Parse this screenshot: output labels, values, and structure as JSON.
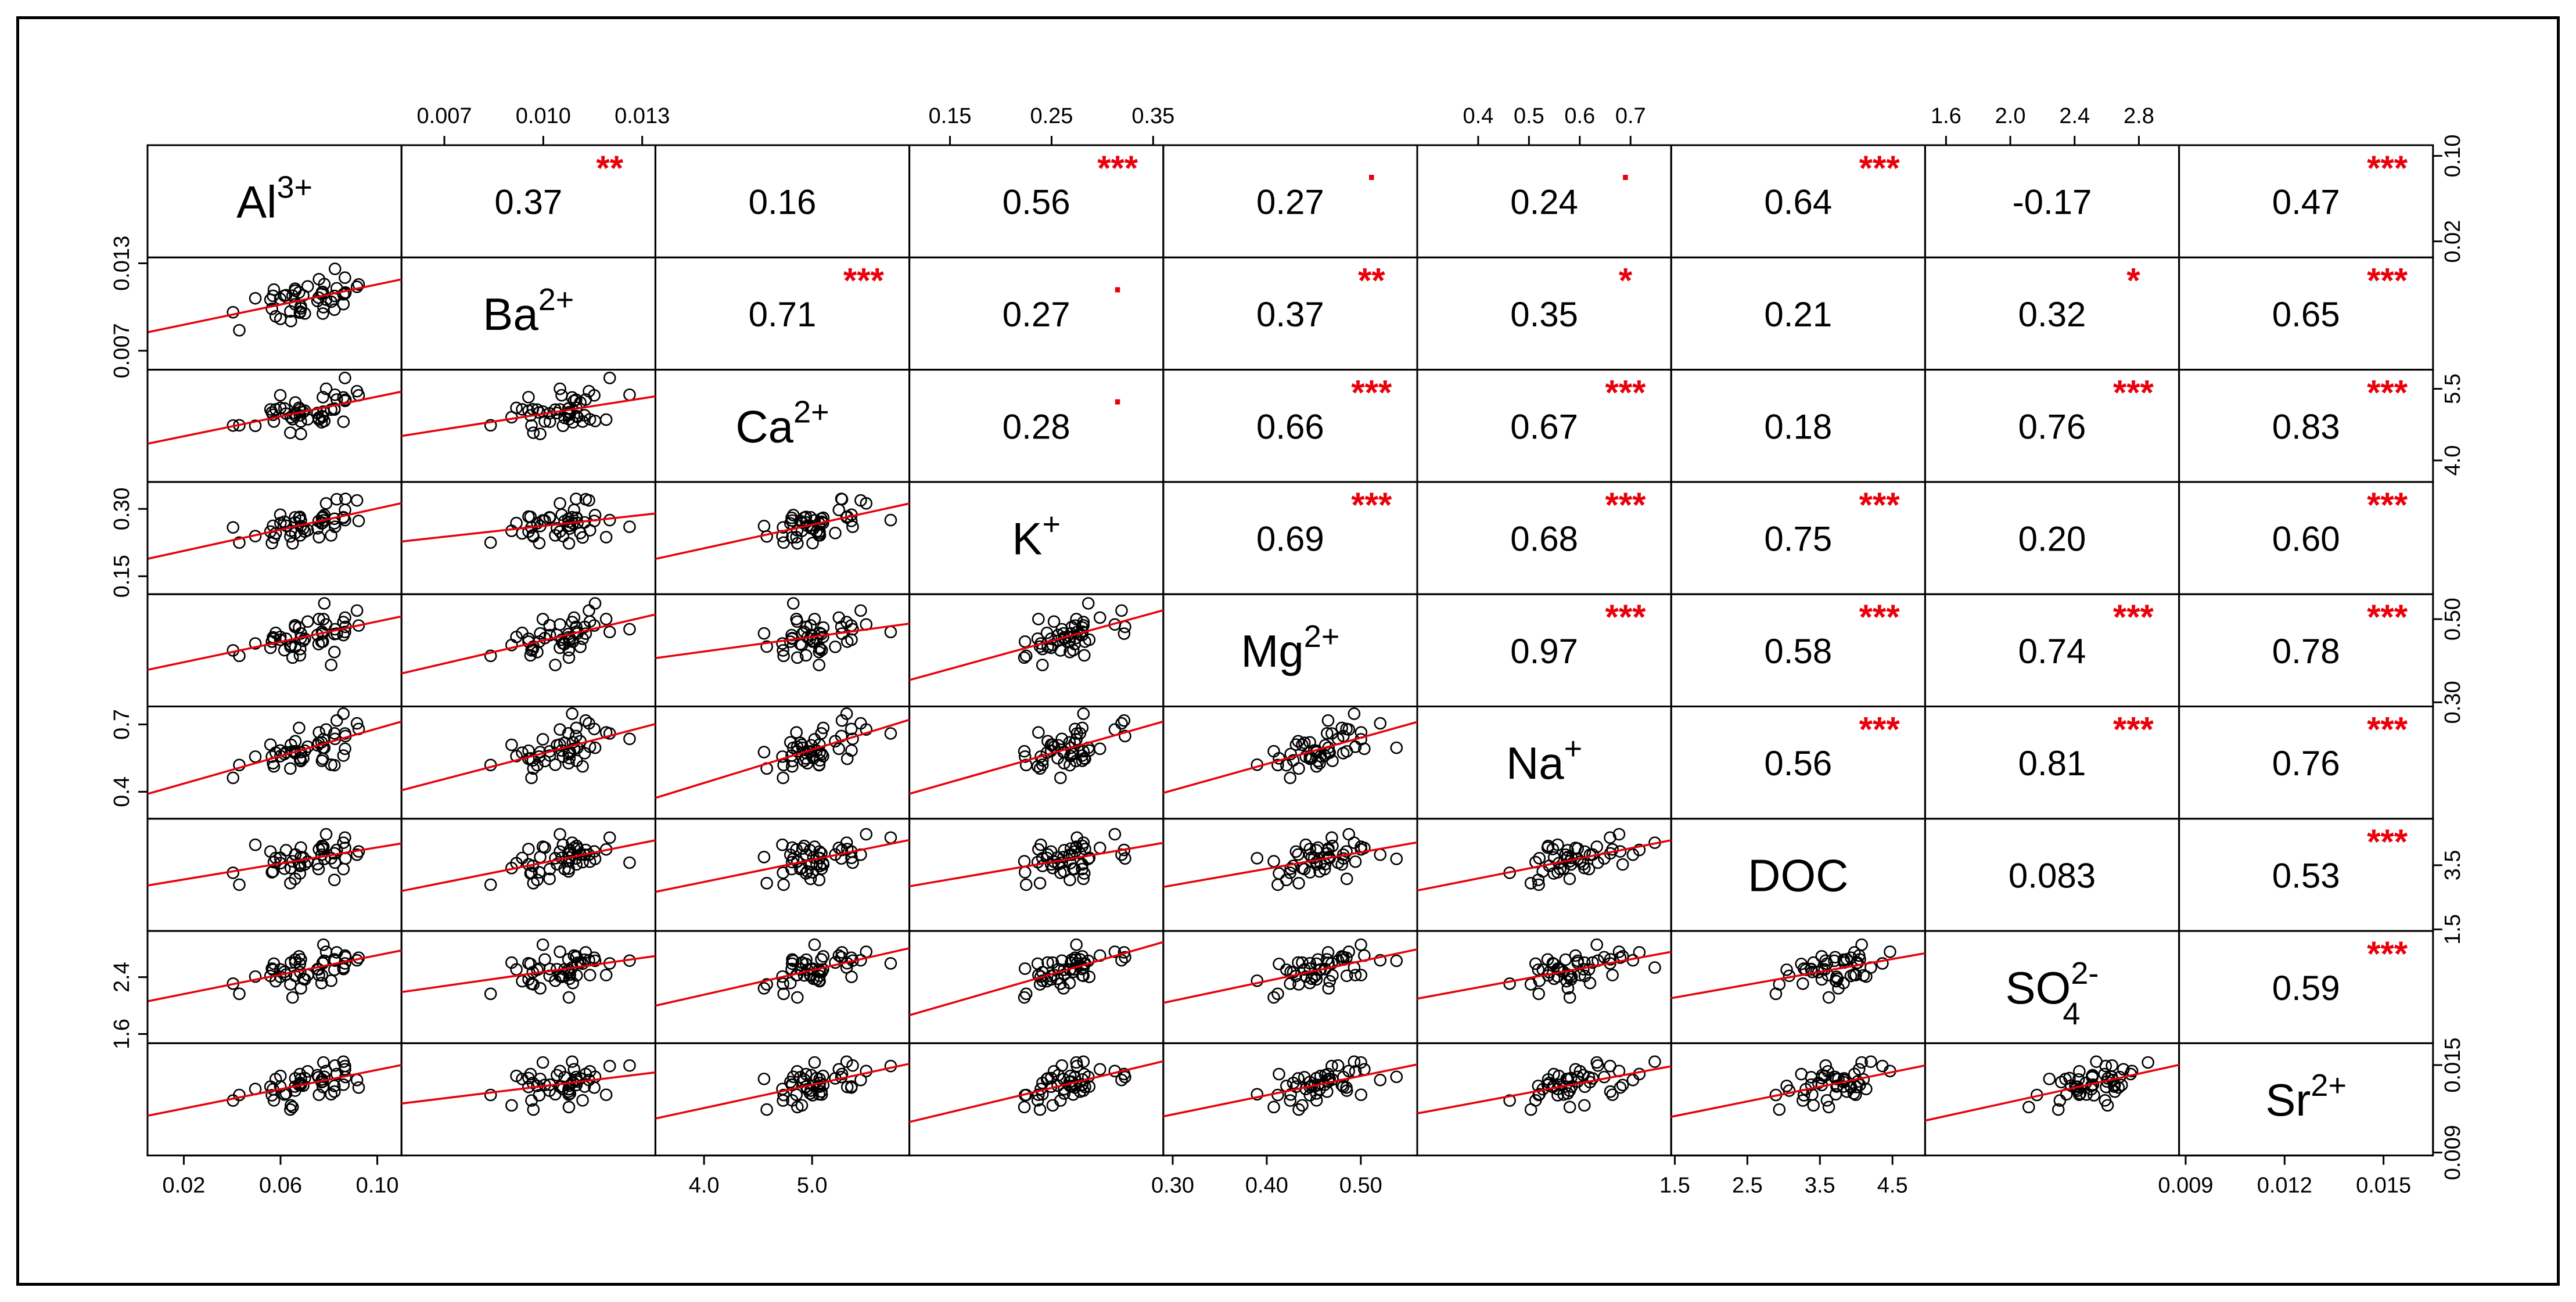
{
  "chart_data": {
    "type": "scatter",
    "title": "",
    "variables": [
      {
        "key": "Al",
        "label": "Al",
        "sup": "3+",
        "sub": "",
        "range": [
          0.005,
          0.11
        ],
        "ticks": [
          0.02,
          0.06,
          0.1
        ],
        "tick_labels": [
          "0.02",
          "0.06",
          "0.10"
        ]
      },
      {
        "key": "Ba",
        "label": "Ba",
        "sup": "2+",
        "sub": "",
        "range": [
          0.0057,
          0.0134
        ],
        "ticks": [
          0.007,
          0.01,
          0.013
        ],
        "tick_labels": [
          "0.007",
          "0.010",
          "0.013"
        ]
      },
      {
        "key": "Ca",
        "label": "Ca",
        "sup": "2+",
        "sub": "",
        "range": [
          3.55,
          5.9
        ],
        "ticks": [
          4.0,
          5.0
        ],
        "tick_labels": [
          "4.0",
          "5.0"
        ]
      },
      {
        "key": "K",
        "label": "K",
        "sup": "+",
        "sub": "",
        "range": [
          0.11,
          0.36
        ],
        "ticks": [
          0.15,
          0.25,
          0.35
        ],
        "tick_labels": [
          "0.15",
          "0.25",
          "0.35"
        ]
      },
      {
        "key": "Mg",
        "label": "Mg",
        "sup": "2+",
        "sub": "",
        "range": [
          0.29,
          0.56
        ],
        "ticks": [
          0.3,
          0.4,
          0.5
        ],
        "tick_labels": [
          "0.30",
          "0.40",
          "0.50"
        ]
      },
      {
        "key": "Na",
        "label": "Na",
        "sup": "+",
        "sub": "",
        "range": [
          0.28,
          0.78
        ],
        "ticks": [
          0.4,
          0.5,
          0.6,
          0.7
        ],
        "tick_labels": [
          "0.4",
          "0.5",
          "0.6",
          "0.7"
        ]
      },
      {
        "key": "DOC",
        "label": "DOC",
        "sup": "",
        "sub": "",
        "range": [
          1.45,
          4.95
        ],
        "ticks": [
          1.5,
          2.5,
          3.5,
          4.5
        ],
        "tick_labels": [
          "1.5",
          "2.5",
          "3.5",
          "4.5"
        ]
      },
      {
        "key": "SO4",
        "label": "SO",
        "sup": "2-",
        "sub": "4",
        "range": [
          1.47,
          3.05
        ],
        "ticks": [
          1.6,
          2.0,
          2.4,
          2.8
        ],
        "tick_labels": [
          "1.6",
          "2.0",
          "2.4",
          "2.8"
        ]
      },
      {
        "key": "Sr",
        "label": "Sr",
        "sup": "2+",
        "sub": "",
        "range": [
          0.0088,
          0.0165
        ],
        "ticks": [
          0.009,
          0.012,
          0.015
        ],
        "tick_labels": [
          "0.009",
          "0.012",
          "0.015"
        ]
      }
    ],
    "left_axis": [
      {
        "var": 1,
        "ticks": [
          0.007,
          0.013
        ],
        "labels": [
          "0.007",
          "0.013"
        ]
      },
      {
        "var": 3,
        "ticks": [
          0.15,
          0.3
        ],
        "labels": [
          "0.15",
          "0.30"
        ]
      },
      {
        "var": 5,
        "ticks": [
          0.4,
          0.7
        ],
        "labels": [
          "0.4",
          "0.7"
        ]
      },
      {
        "var": 7,
        "ticks": [
          1.6,
          2.4
        ],
        "labels": [
          "1.6",
          "2.4"
        ]
      }
    ],
    "right_axis": [
      {
        "var": 0,
        "ticks": [
          0.02,
          0.1
        ],
        "labels": [
          "0.02",
          "0.10"
        ]
      },
      {
        "var": 2,
        "ticks": [
          4.0,
          5.5
        ],
        "labels": [
          "4.0",
          "5.5"
        ]
      },
      {
        "var": 4,
        "ticks": [
          0.3,
          0.5
        ],
        "labels": [
          "0.30",
          "0.50"
        ]
      },
      {
        "var": 6,
        "ticks": [
          1.5,
          3.5
        ],
        "labels": [
          "1.5",
          "3.5"
        ]
      },
      {
        "var": 8,
        "ticks": [
          0.009,
          0.015
        ],
        "labels": [
          "0.009",
          "0.015"
        ]
      }
    ],
    "correlations": [
      {
        "row": 0,
        "col": 1,
        "r": "0.37",
        "sig": "**"
      },
      {
        "row": 0,
        "col": 2,
        "r": "0.16",
        "sig": ""
      },
      {
        "row": 0,
        "col": 3,
        "r": "0.56",
        "sig": "***"
      },
      {
        "row": 0,
        "col": 4,
        "r": "0.27",
        "sig": "."
      },
      {
        "row": 0,
        "col": 5,
        "r": "0.24",
        "sig": "."
      },
      {
        "row": 0,
        "col": 6,
        "r": "0.64",
        "sig": "***"
      },
      {
        "row": 0,
        "col": 7,
        "r": "-0.17",
        "sig": ""
      },
      {
        "row": 0,
        "col": 8,
        "r": "0.47",
        "sig": "***"
      },
      {
        "row": 1,
        "col": 2,
        "r": "0.71",
        "sig": "***"
      },
      {
        "row": 1,
        "col": 3,
        "r": "0.27",
        "sig": "."
      },
      {
        "row": 1,
        "col": 4,
        "r": "0.37",
        "sig": "**"
      },
      {
        "row": 1,
        "col": 5,
        "r": "0.35",
        "sig": "*"
      },
      {
        "row": 1,
        "col": 6,
        "r": "0.21",
        "sig": ""
      },
      {
        "row": 1,
        "col": 7,
        "r": "0.32",
        "sig": "*"
      },
      {
        "row": 1,
        "col": 8,
        "r": "0.65",
        "sig": "***"
      },
      {
        "row": 2,
        "col": 3,
        "r": "0.28",
        "sig": "."
      },
      {
        "row": 2,
        "col": 4,
        "r": "0.66",
        "sig": "***"
      },
      {
        "row": 2,
        "col": 5,
        "r": "0.67",
        "sig": "***"
      },
      {
        "row": 2,
        "col": 6,
        "r": "0.18",
        "sig": ""
      },
      {
        "row": 2,
        "col": 7,
        "r": "0.76",
        "sig": "***"
      },
      {
        "row": 2,
        "col": 8,
        "r": "0.83",
        "sig": "***"
      },
      {
        "row": 3,
        "col": 4,
        "r": "0.69",
        "sig": "***"
      },
      {
        "row": 3,
        "col": 5,
        "r": "0.68",
        "sig": "***"
      },
      {
        "row": 3,
        "col": 6,
        "r": "0.75",
        "sig": "***"
      },
      {
        "row": 3,
        "col": 7,
        "r": "0.20",
        "sig": ""
      },
      {
        "row": 3,
        "col": 8,
        "r": "0.60",
        "sig": "***"
      },
      {
        "row": 4,
        "col": 5,
        "r": "0.97",
        "sig": "***"
      },
      {
        "row": 4,
        "col": 6,
        "r": "0.58",
        "sig": "***"
      },
      {
        "row": 4,
        "col": 7,
        "r": "0.74",
        "sig": "***"
      },
      {
        "row": 4,
        "col": 8,
        "r": "0.78",
        "sig": "***"
      },
      {
        "row": 5,
        "col": 6,
        "r": "0.56",
        "sig": "***"
      },
      {
        "row": 5,
        "col": 7,
        "r": "0.81",
        "sig": "***"
      },
      {
        "row": 5,
        "col": 8,
        "r": "0.76",
        "sig": "***"
      },
      {
        "row": 6,
        "col": 7,
        "r": "0.083",
        "sig": ""
      },
      {
        "row": 6,
        "col": 8,
        "r": "0.53",
        "sig": "***"
      },
      {
        "row": 7,
        "col": 8,
        "r": "0.59",
        "sig": "***"
      }
    ],
    "fit_color": "#e8000b",
    "sig_color": "#e8000b",
    "point_color": "#000000"
  }
}
